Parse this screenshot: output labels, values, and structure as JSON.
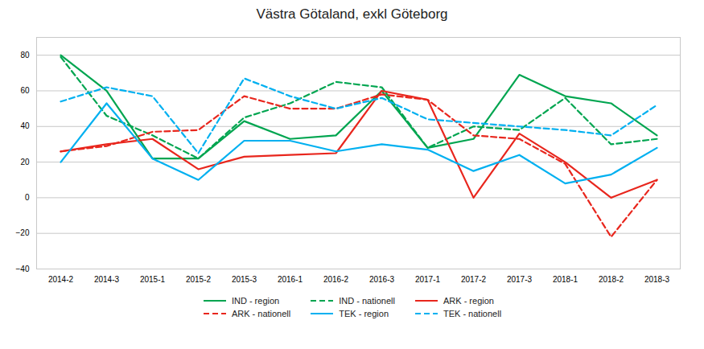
{
  "chart_data": {
    "type": "line",
    "title": "Västra Götaland, exkl Göteborg",
    "categories": [
      "2014-2",
      "2014-3",
      "2015-1",
      "2015-2",
      "2015-3",
      "2016-1",
      "2016-2",
      "2016-3",
      "2017-1",
      "2017-2",
      "2017-3",
      "2018-1",
      "2018-2",
      "2018-3"
    ],
    "series": [
      {
        "name": "IND - region",
        "color": "#00a550",
        "line_style": "solid",
        "values": [
          80,
          60,
          22,
          22,
          43,
          33,
          35,
          60,
          28,
          33,
          69,
          57,
          53,
          35
        ]
      },
      {
        "name": "IND - nationell",
        "color": "#00a550",
        "line_style": "dashed",
        "values": [
          79,
          46,
          35,
          22,
          45,
          53,
          65,
          62,
          28,
          40,
          38,
          56,
          30,
          33
        ]
      },
      {
        "name": "ARK - region",
        "color": "#e8261d",
        "line_style": "solid",
        "values": [
          26,
          30,
          33,
          16,
          23,
          24,
          25,
          60,
          55,
          0,
          36,
          20,
          0,
          10
        ]
      },
      {
        "name": "ARK - nationell",
        "color": "#e8261d",
        "line_style": "dashed",
        "values": [
          26,
          29,
          37,
          38,
          57,
          50,
          50,
          58,
          55,
          35,
          33,
          19,
          -22,
          10
        ]
      },
      {
        "name": "TEK - region",
        "color": "#00b0f0",
        "line_style": "solid",
        "values": [
          20,
          53,
          22,
          10,
          32,
          32,
          26,
          30,
          27,
          15,
          24,
          8,
          13,
          28
        ]
      },
      {
        "name": "TEK - nationell",
        "color": "#00b0f0",
        "line_style": "dashed",
        "values": [
          54,
          62,
          57,
          25,
          67,
          57,
          50,
          56,
          44,
          42,
          40,
          38,
          35,
          52
        ]
      }
    ],
    "ylim": [
      -40,
      90
    ],
    "yticks": [
      -40,
      -20,
      0,
      20,
      40,
      60,
      80
    ],
    "grid": true,
    "legend": "bottom"
  }
}
